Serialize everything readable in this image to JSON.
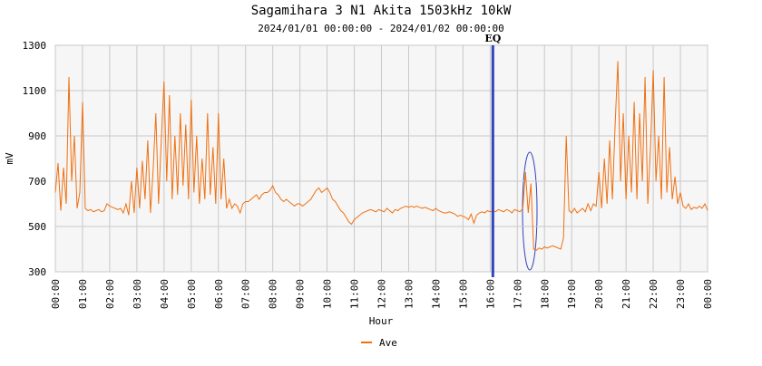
{
  "chart_data": {
    "type": "line",
    "title": "Sagamihara 3 N1 Akita 1503kHz 10kW",
    "subtitle": "2024/01/01 00:00:00 - 2024/01/02 00:00:00",
    "x_label": "Hour",
    "y_label": "mV",
    "xlim": [
      0,
      24
    ],
    "ylim": [
      300,
      1300
    ],
    "yticks": [
      300,
      500,
      700,
      900,
      1100,
      1300
    ],
    "xticks": [
      {
        "value": 0,
        "label": "00:00"
      },
      {
        "value": 1,
        "label": "01:00"
      },
      {
        "value": 2,
        "label": "02:00"
      },
      {
        "value": 3,
        "label": "03:00"
      },
      {
        "value": 4,
        "label": "04:00"
      },
      {
        "value": 5,
        "label": "05:00"
      },
      {
        "value": 6,
        "label": "06:00"
      },
      {
        "value": 7,
        "label": "07:00"
      },
      {
        "value": 8,
        "label": "08:00"
      },
      {
        "value": 9,
        "label": "09:00"
      },
      {
        "value": 10,
        "label": "10:00"
      },
      {
        "value": 11,
        "label": "11:00"
      },
      {
        "value": 12,
        "label": "12:00"
      },
      {
        "value": 13,
        "label": "13:00"
      },
      {
        "value": 14,
        "label": "14:00"
      },
      {
        "value": 15,
        "label": "15:00"
      },
      {
        "value": 16,
        "label": "16:00"
      },
      {
        "value": 17,
        "label": "17:00"
      },
      {
        "value": 18,
        "label": "18:00"
      },
      {
        "value": 19,
        "label": "19:00"
      },
      {
        "value": 20,
        "label": "20:00"
      },
      {
        "value": 21,
        "label": "21:00"
      },
      {
        "value": 22,
        "label": "22:00"
      },
      {
        "value": 23,
        "label": "23:00"
      },
      {
        "value": 24,
        "label": "00:00"
      }
    ],
    "grid": true,
    "event": {
      "label": "EQ",
      "x": 16.1,
      "color": "#3344bb"
    },
    "x": [
      0,
      0.1,
      0.2,
      0.3,
      0.4,
      0.5,
      0.6,
      0.7,
      0.8,
      0.9,
      1,
      1.1,
      1.2,
      1.3,
      1.4,
      1.5,
      1.6,
      1.7,
      1.8,
      1.9,
      2,
      2.1,
      2.2,
      2.3,
      2.4,
      2.5,
      2.6,
      2.7,
      2.8,
      2.9,
      3,
      3.1,
      3.2,
      3.3,
      3.4,
      3.5,
      3.6,
      3.7,
      3.8,
      3.9,
      4,
      4.1,
      4.2,
      4.3,
      4.4,
      4.5,
      4.6,
      4.7,
      4.8,
      4.9,
      5,
      5.1,
      5.2,
      5.3,
      5.4,
      5.5,
      5.6,
      5.7,
      5.8,
      5.9,
      6,
      6.1,
      6.2,
      6.3,
      6.4,
      6.5,
      6.6,
      6.7,
      6.8,
      6.9,
      7,
      7.1,
      7.2,
      7.3,
      7.4,
      7.5,
      7.6,
      7.7,
      7.8,
      7.9,
      8,
      8.1,
      8.2,
      8.3,
      8.4,
      8.5,
      8.6,
      8.7,
      8.8,
      8.9,
      9,
      9.1,
      9.2,
      9.3,
      9.4,
      9.5,
      9.6,
      9.7,
      9.8,
      9.9,
      10,
      10.1,
      10.2,
      10.3,
      10.4,
      10.5,
      10.6,
      10.7,
      10.8,
      10.9,
      11,
      11.1,
      11.2,
      11.3,
      11.4,
      11.5,
      11.6,
      11.7,
      11.8,
      11.9,
      12,
      12.1,
      12.2,
      12.3,
      12.4,
      12.5,
      12.6,
      12.7,
      12.8,
      12.9,
      13,
      13.1,
      13.2,
      13.3,
      13.4,
      13.5,
      13.6,
      13.7,
      13.8,
      13.9,
      14,
      14.1,
      14.2,
      14.3,
      14.4,
      14.5,
      14.6,
      14.7,
      14.8,
      14.9,
      15,
      15.1,
      15.2,
      15.3,
      15.4,
      15.5,
      15.6,
      15.7,
      15.8,
      15.9,
      16,
      16.1,
      16.2,
      16.3,
      16.4,
      16.5,
      16.6,
      16.7,
      16.8,
      16.9,
      17,
      17.1,
      17.2,
      17.3,
      17.4,
      17.5,
      17.6,
      17.7,
      17.8,
      17.9,
      18,
      18.1,
      18.2,
      18.3,
      18.4,
      18.5,
      18.6,
      18.7,
      18.8,
      18.9,
      19,
      19.1,
      19.2,
      19.3,
      19.4,
      19.5,
      19.6,
      19.7,
      19.8,
      19.9,
      20,
      20.1,
      20.2,
      20.3,
      20.4,
      20.5,
      20.6,
      20.7,
      20.8,
      20.9,
      21,
      21.1,
      21.2,
      21.3,
      21.4,
      21.5,
      21.6,
      21.7,
      21.8,
      21.9,
      22,
      22.1,
      22.2,
      22.3,
      22.4,
      22.5,
      22.6,
      22.7,
      22.8,
      22.9,
      23,
      23.1,
      23.2,
      23.3,
      23.4,
      23.5,
      23.6,
      23.7,
      23.8,
      23.9,
      24
    ],
    "series": [
      {
        "name": "Ave",
        "color": "#f07010",
        "values": [
          650,
          780,
          570,
          760,
          600,
          1160,
          700,
          900,
          580,
          650,
          1050,
          580,
          570,
          575,
          565,
          570,
          575,
          565,
          570,
          600,
          590,
          585,
          580,
          575,
          580,
          560,
          600,
          550,
          700,
          560,
          760,
          580,
          790,
          620,
          880,
          560,
          750,
          1000,
          600,
          880,
          1140,
          700,
          1080,
          620,
          900,
          640,
          1000,
          680,
          950,
          620,
          1060,
          650,
          900,
          600,
          800,
          620,
          1000,
          640,
          850,
          600,
          1000,
          620,
          800,
          580,
          620,
          580,
          600,
          590,
          560,
          600,
          610,
          610,
          620,
          630,
          640,
          620,
          640,
          650,
          650,
          660,
          680,
          650,
          640,
          620,
          610,
          620,
          610,
          600,
          590,
          600,
          600,
          590,
          600,
          610,
          620,
          640,
          660,
          670,
          650,
          660,
          670,
          650,
          620,
          610,
          590,
          570,
          560,
          540,
          520,
          510,
          530,
          540,
          550,
          560,
          565,
          570,
          575,
          570,
          565,
          575,
          570,
          565,
          580,
          570,
          560,
          575,
          570,
          580,
          585,
          590,
          585,
          590,
          585,
          590,
          585,
          580,
          585,
          580,
          575,
          570,
          580,
          570,
          565,
          560,
          560,
          565,
          560,
          555,
          545,
          550,
          545,
          540,
          530,
          555,
          515,
          550,
          560,
          565,
          560,
          570,
          565,
          570,
          565,
          575,
          570,
          565,
          575,
          570,
          560,
          575,
          570,
          565,
          580,
          740,
          560,
          690,
          400,
          395,
          405,
          400,
          410,
          405,
          410,
          415,
          410,
          405,
          400,
          450,
          900,
          570,
          560,
          580,
          560,
          570,
          580,
          565,
          600,
          570,
          600,
          590,
          740,
          580,
          800,
          600,
          880,
          620,
          950,
          1230,
          700,
          1000,
          620,
          900,
          650,
          1050,
          620,
          1000,
          700,
          1160,
          600,
          850,
          1190,
          700,
          900,
          620,
          1160,
          650,
          850,
          620,
          720,
          600,
          650,
          590,
          580,
          600,
          575,
          585,
          580,
          590,
          580,
          600,
          570
        ]
      }
    ]
  }
}
